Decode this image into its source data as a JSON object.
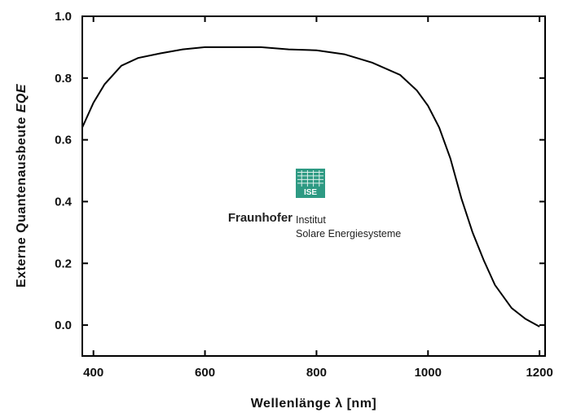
{
  "chart_data": {
    "type": "line",
    "title": "",
    "xlabel_prefix": "Wellenlänge ",
    "xlabel_symbol": "λ",
    "xlabel_suffix": " [nm]",
    "ylabel_prefix": "Externe Quantenausbeute ",
    "ylabel_symbol": "EQE",
    "xlim": [
      380,
      1210
    ],
    "ylim": [
      -0.1,
      1.0
    ],
    "x_ticks": [
      400,
      600,
      800,
      1000,
      1200
    ],
    "y_ticks": [
      0.0,
      0.2,
      0.4,
      0.6,
      0.8,
      1.0
    ],
    "x_tick_labels": [
      "400",
      "600",
      "800",
      "1000",
      "1200"
    ],
    "y_tick_labels": [
      "0.0",
      "0.2",
      "0.4",
      "0.6",
      "0.8",
      "1.0"
    ],
    "grid": false,
    "line_color": "#000000",
    "series": [
      {
        "x": [
          380,
          400,
          420,
          450,
          480,
          520,
          560,
          600,
          650,
          700,
          750,
          800,
          850,
          900,
          950,
          980,
          1000,
          1020,
          1040,
          1060,
          1080,
          1100,
          1120,
          1150,
          1175,
          1200
        ],
        "values": [
          0.64,
          0.72,
          0.78,
          0.84,
          0.865,
          0.88,
          0.893,
          0.9,
          0.9,
          0.9,
          0.893,
          0.89,
          0.877,
          0.85,
          0.81,
          0.76,
          0.71,
          0.64,
          0.54,
          0.41,
          0.3,
          0.21,
          0.13,
          0.055,
          0.02,
          -0.005
        ]
      }
    ]
  },
  "logo": {
    "badge_text": "ISE",
    "brand": "Fraunhofer",
    "line1": "Institut",
    "line2": "Solare Energiesysteme",
    "color": "#2e9a83"
  }
}
